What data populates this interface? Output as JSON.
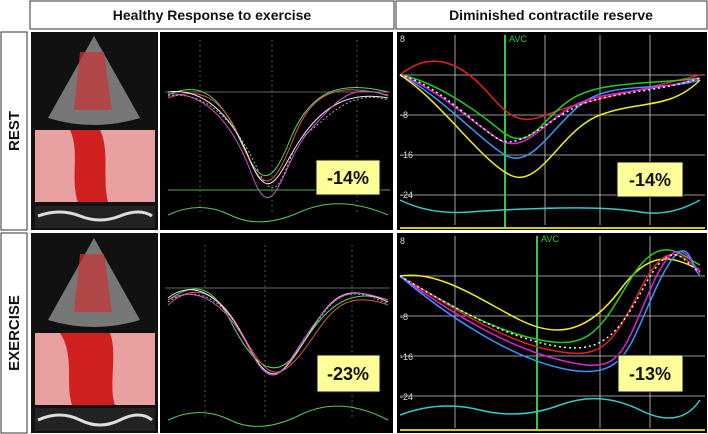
{
  "header": {
    "columns": [
      "Healthy Response to exercise",
      "Diminished contractile reserve"
    ]
  },
  "rows": [
    {
      "label": "REST",
      "healthy": {
        "strain": "-14%"
      },
      "diminished": {
        "strain": "-14%",
        "marker": "AVC",
        "axis": [
          "8",
          "-8",
          "-16",
          "-24"
        ]
      }
    },
    {
      "label": "EXERCISE",
      "healthy": {
        "strain": "-23%"
      },
      "diminished": {
        "strain": "-13%",
        "marker": "AVC",
        "axis": [
          "8",
          "-8",
          "-16",
          "-24"
        ]
      }
    }
  ]
}
